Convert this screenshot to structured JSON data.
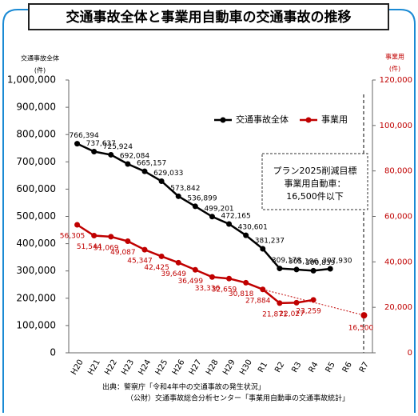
{
  "chart_data": {
    "type": "line",
    "title": "交通事故全体と事業用自動車の交通事故の推移",
    "y_label": [
      "交通事故全体",
      "(件)"
    ],
    "y2_label": [
      "事業用",
      "(件)"
    ],
    "categories": [
      "H20",
      "H21",
      "H22",
      "H23",
      "H24",
      "H25",
      "H26",
      "H27",
      "H28",
      "H29",
      "H30",
      "R1",
      "R2",
      "R3",
      "R4",
      "R5",
      "R6",
      "R7"
    ],
    "series": [
      {
        "name": "交通事故全体",
        "color": "#000000",
        "axis": "y",
        "values": [
          766394,
          737637,
          725924,
          692084,
          665157,
          629033,
          573842,
          536899,
          499201,
          472165,
          430601,
          381237,
          309178,
          305196,
          300839,
          307930,
          null,
          null
        ],
        "value_labels": [
          "766,394",
          "737,637",
          "725,924",
          "692,084",
          "665,157",
          "629,033",
          "573,842",
          "536,899",
          "499,201",
          "472,165",
          "430,601",
          "381,237",
          "309,178",
          "305,196",
          "300,839",
          "307,930",
          null,
          null
        ]
      },
      {
        "name": "事業用",
        "color": "#c00000",
        "axis": "y2",
        "values": [
          56305,
          51544,
          51069,
          49087,
          45347,
          42425,
          39649,
          36499,
          33336,
          32659,
          30818,
          27884,
          21871,
          22027,
          23259,
          null,
          null,
          null
        ],
        "value_labels": [
          "56,305",
          "51,544",
          "51,069",
          "49,087",
          "45,347",
          "42,425",
          "39,649",
          "36,499",
          "33,336",
          "32,659",
          "30,818",
          "27,884",
          "21,871",
          "22,027",
          "23,259",
          null,
          null,
          null
        ]
      }
    ],
    "target": {
      "category": "R7",
      "value": 16500,
      "value_label": "16,500"
    },
    "annotation": [
      "プラン2025削減目標",
      "事業用自動車：",
      "16,500件以下"
    ],
    "source": [
      "出典：警察庁「令和4年中の交通事故の発生状況」",
      "（公財）交通事故総合分析センター「事業用自動車の交通事故統計」"
    ],
    "ylim": [
      0,
      1000000
    ],
    "yticks": [
      0,
      {
        "value": 100000,
        "label": "100,000"
      },
      {
        "value": 200000,
        "label": "200,000"
      },
      {
        "value": 300000,
        "label": "300,000"
      },
      {
        "value": 400000,
        "label": "400,000"
      },
      {
        "value": 500000,
        "label": "500,000"
      },
      {
        "value": 600000,
        "label": "600,000"
      },
      {
        "value": 700000,
        "label": "700,000"
      },
      {
        "value": 800000,
        "label": "800,000"
      },
      {
        "value": 900000,
        "label": "900,000"
      },
      {
        "value": 1000000,
        "label": "1,000,000"
      }
    ],
    "y2lim": [
      0,
      120000
    ],
    "y2ticks": [
      0,
      {
        "value": 20000,
        "label": "20,000"
      },
      {
        "value": 40000,
        "label": "40,000"
      },
      {
        "value": 60000,
        "label": "60,000"
      },
      {
        "value": 80000,
        "label": "80,000"
      },
      {
        "value": 100000,
        "label": "100,000"
      },
      {
        "value": 120000,
        "label": "120,000"
      }
    ],
    "legend": "upper right"
  }
}
